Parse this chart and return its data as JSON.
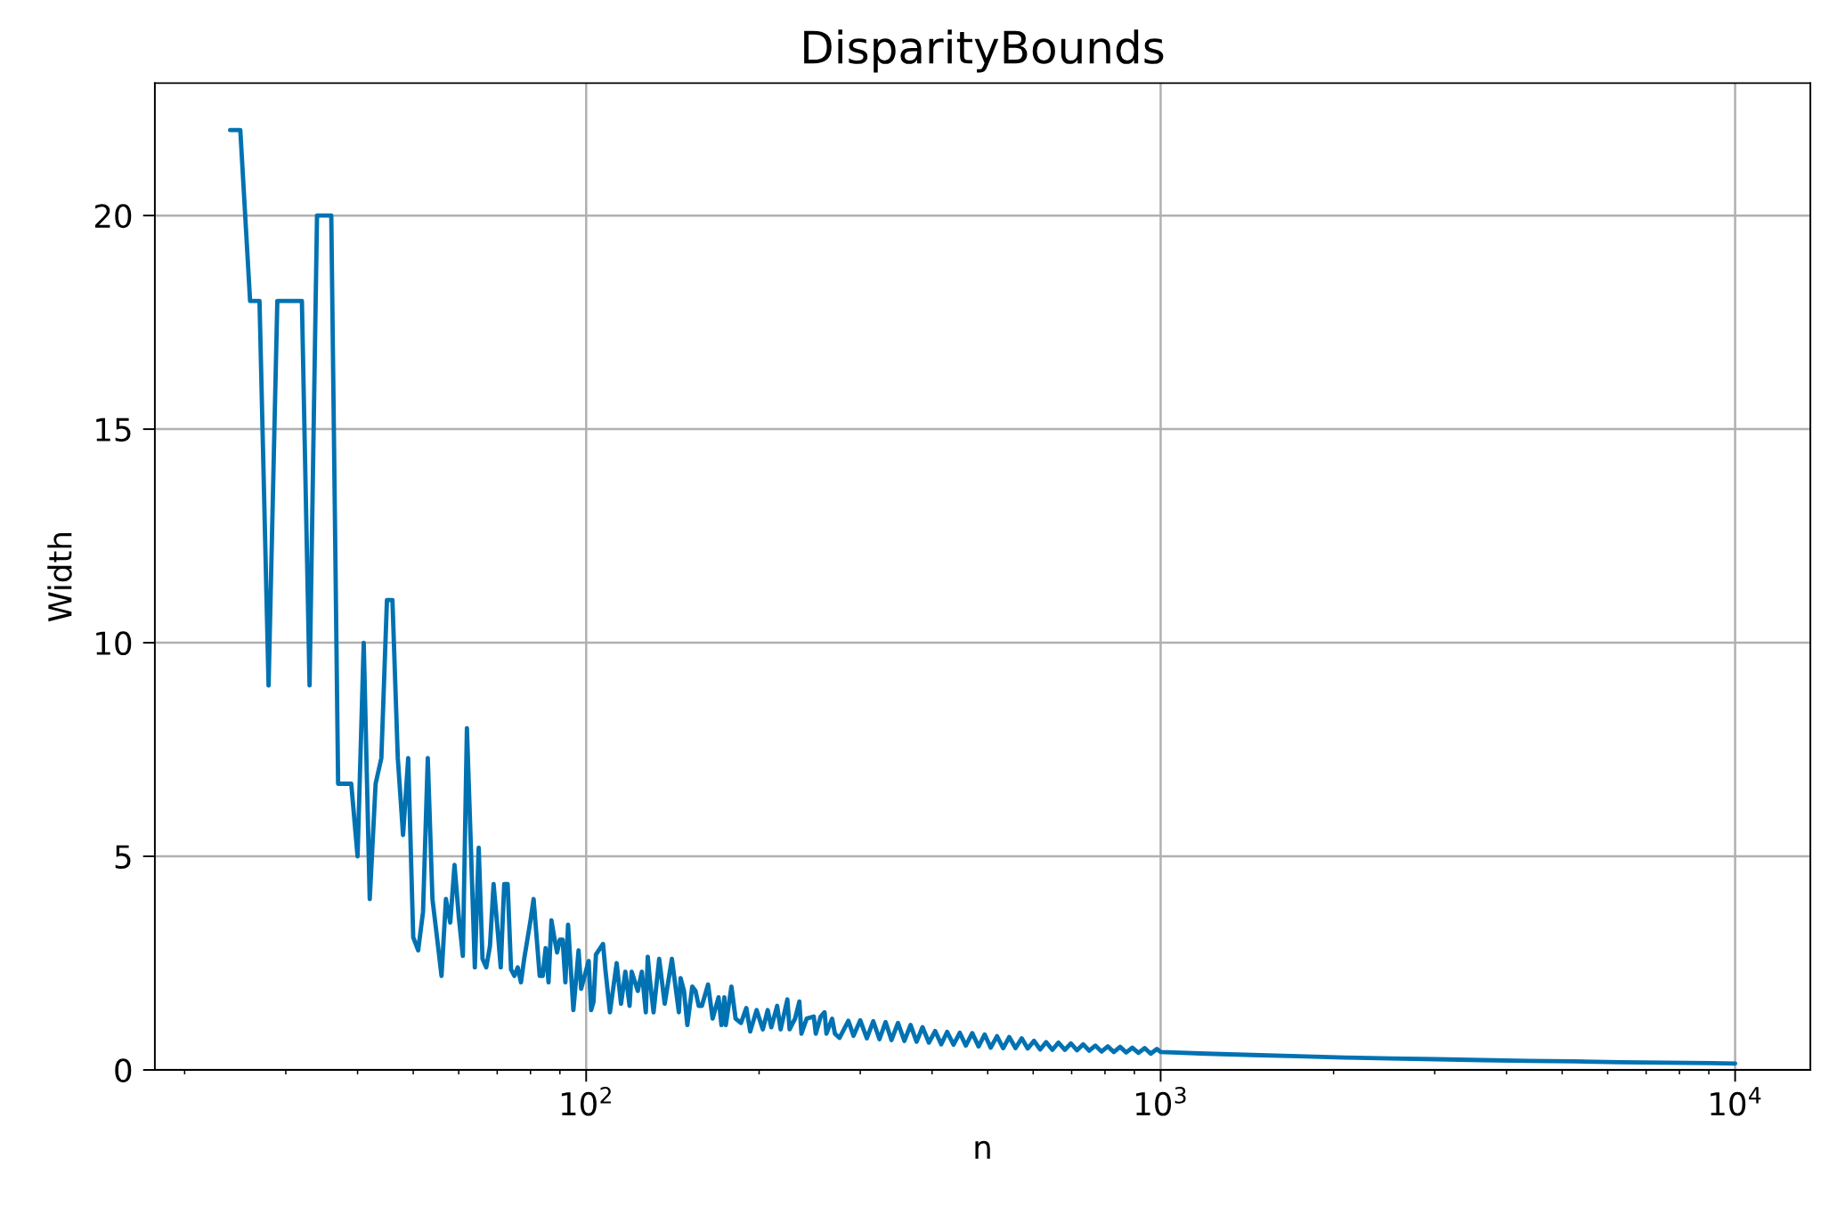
{
  "chart_data": {
    "type": "line",
    "title": "DisparityBounds",
    "xlabel": "n",
    "ylabel": "Width",
    "log": "x",
    "grid": true,
    "line_style": "solid",
    "xlim": [
      17.75,
      13520
    ],
    "ylim": [
      0,
      23.1
    ],
    "xticks": [
      {
        "value": 20,
        "label": null
      },
      {
        "value": 30,
        "label": null
      },
      {
        "value": 40,
        "label": null
      },
      {
        "value": 50,
        "label": null
      },
      {
        "value": 60,
        "label": null
      },
      {
        "value": 70,
        "label": null
      },
      {
        "value": 80,
        "label": null
      },
      {
        "value": 90,
        "label": null
      },
      {
        "value": 100,
        "label": "10$^{2}$"
      },
      {
        "value": 200,
        "label": null
      },
      {
        "value": 300,
        "label": null
      },
      {
        "value": 400,
        "label": null
      },
      {
        "value": 500,
        "label": null
      },
      {
        "value": 600,
        "label": null
      },
      {
        "value": 700,
        "label": null
      },
      {
        "value": 800,
        "label": null
      },
      {
        "value": 900,
        "label": null
      },
      {
        "value": 1000,
        "label": "10$^{3}$"
      },
      {
        "value": 2000,
        "label": null
      },
      {
        "value": 3000,
        "label": null
      },
      {
        "value": 4000,
        "label": null
      },
      {
        "value": 5000,
        "label": null
      },
      {
        "value": 6000,
        "label": null
      },
      {
        "value": 7000,
        "label": null
      },
      {
        "value": 8000,
        "label": null
      },
      {
        "value": 9000,
        "label": null
      },
      {
        "value": 10000,
        "label": "10$^{4}$"
      }
    ],
    "yticks": [
      0,
      5,
      10,
      15,
      20
    ],
    "x": [
      24,
      25,
      26,
      27,
      28,
      29,
      30,
      31,
      32,
      33,
      34,
      35,
      36,
      37,
      38,
      39,
      40,
      41,
      42,
      43,
      44,
      45,
      46,
      47,
      48,
      49,
      50,
      51,
      52,
      53,
      54,
      55,
      56,
      57,
      58,
      59,
      60,
      61,
      62,
      63,
      64,
      65,
      66,
      67,
      68,
      69,
      70,
      71,
      72,
      73,
      74,
      75,
      76,
      77,
      78,
      79,
      80,
      81,
      82,
      83,
      84,
      85,
      86,
      87,
      88,
      89,
      90,
      91,
      92,
      93,
      94,
      95,
      96,
      97,
      98,
      101,
      102,
      103,
      104,
      107,
      108,
      110,
      113,
      115,
      117,
      119,
      120,
      123,
      125,
      127,
      128,
      129,
      131,
      134,
      137,
      141,
      145,
      146,
      148,
      150,
      153,
      155,
      157,
      159,
      163,
      166,
      170,
      172,
      174,
      175,
      179,
      182,
      186,
      190,
      193,
      198,
      203,
      207,
      210,
      215,
      218,
      224,
      226,
      231,
      235,
      237,
      242,
      249,
      251,
      256,
      260,
      262,
      268,
      271,
      276,
      286,
      292,
      300,
      308,
      316,
      324,
      332,
      340,
      349,
      358,
      367,
      376,
      385,
      395,
      405,
      415,
      425,
      436,
      447,
      458,
      470,
      482,
      494,
      506,
      519,
      532,
      545,
      559,
      573,
      587,
      602,
      617,
      632,
      648,
      664,
      681,
      698,
      715,
      733,
      751,
      770,
      789,
      809,
      829,
      850,
      871,
      893,
      915,
      938,
      961,
      985,
      1000,
      1202,
      1445,
      1738,
      2089,
      2512,
      3020,
      3631,
      4365,
      5248,
      6310,
      7586,
      9120,
      10000
    ],
    "series": [
      {
        "color": "#0072b2",
        "values": [
          22,
          22,
          18,
          18,
          9,
          18,
          18,
          18,
          18,
          9,
          20,
          20,
          20,
          6.7,
          6.7,
          6.7,
          5,
          10,
          4,
          6.7,
          7.3,
          11,
          11,
          7.3,
          5.5,
          7.3,
          3.1,
          2.8,
          3.7,
          7.3,
          4,
          3.1,
          2.2,
          4,
          3.45,
          4.8,
          3.6,
          2.67,
          8,
          5.2,
          2.4,
          5.2,
          2.6,
          2.4,
          2.9,
          4.35,
          3.4,
          2.4,
          4.35,
          4.35,
          2.35,
          2.2,
          2.4,
          2.05,
          2.6,
          3.05,
          3.5,
          4,
          3.1,
          2.2,
          2.2,
          2.85,
          2.05,
          3.5,
          3.1,
          2.75,
          3.05,
          3.05,
          2.05,
          3.4,
          2.4,
          1.4,
          2.1,
          2.8,
          1.9,
          2.55,
          1.4,
          1.6,
          2.7,
          2.95,
          2.35,
          1.35,
          2.5,
          1.55,
          2.3,
          1.5,
          2.3,
          1.85,
          2.3,
          1.35,
          2.65,
          2.15,
          1.35,
          2.6,
          1.55,
          2.6,
          1.35,
          2.15,
          1.85,
          1.05,
          1.95,
          1.85,
          1.5,
          1.5,
          2.0,
          1.2,
          1.7,
          1.05,
          1.7,
          1.05,
          1.95,
          1.2,
          1.1,
          1.45,
          0.9,
          1.4,
          0.95,
          1.4,
          1.0,
          1.5,
          0.95,
          1.65,
          0.95,
          1.2,
          1.6,
          0.85,
          1.2,
          1.25,
          0.85,
          1.25,
          1.35,
          0.85,
          1.2,
          0.85,
          0.75,
          1.15,
          0.8,
          1.16,
          0.74,
          1.14,
          0.72,
          1.12,
          0.7,
          1.1,
          0.68,
          1.05,
          0.66,
          1.0,
          0.64,
          0.91,
          0.6,
          0.89,
          0.59,
          0.87,
          0.57,
          0.86,
          0.55,
          0.83,
          0.52,
          0.79,
          0.51,
          0.77,
          0.51,
          0.74,
          0.5,
          0.68,
          0.48,
          0.65,
          0.47,
          0.64,
          0.47,
          0.62,
          0.46,
          0.6,
          0.45,
          0.57,
          0.43,
          0.55,
          0.42,
          0.54,
          0.41,
          0.52,
          0.4,
          0.51,
          0.38,
          0.49,
          0.42,
          0.38,
          0.35,
          0.32,
          0.29,
          0.27,
          0.25,
          0.23,
          0.21,
          0.2,
          0.18,
          0.17,
          0.16,
          0.15
        ]
      }
    ]
  }
}
